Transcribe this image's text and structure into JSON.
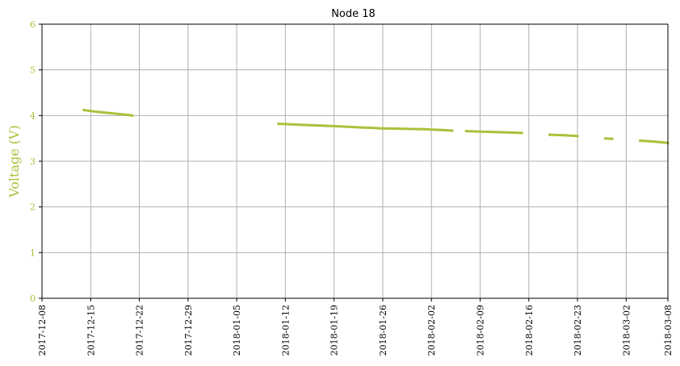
{
  "chart_data": {
    "type": "scatter",
    "title": "Node 18",
    "ylabel": "Voltage (V)",
    "xlabel": "",
    "xlim": [
      "2017-12-08",
      "2018-03-08"
    ],
    "ylim": [
      0,
      6
    ],
    "grid": true,
    "colors": {
      "series": "#a8c23a",
      "axis_text": "#a8c23a",
      "grid": "#b0b0b0"
    },
    "x_ticks": [
      "2017-12-08",
      "2017-12-15",
      "2017-12-22",
      "2017-12-29",
      "2018-01-05",
      "2018-01-12",
      "2018-01-19",
      "2018-01-26",
      "2018-02-02",
      "2018-02-09",
      "2018-02-16",
      "2018-02-23",
      "2018-03-02",
      "2018-03-08"
    ],
    "y_ticks": [
      0,
      1,
      2,
      3,
      4,
      5,
      6
    ],
    "series": [
      {
        "segments": [
          {
            "x": [
              "2017-12-14",
              "2017-12-16",
              "2017-12-18",
              "2017-12-20",
              "2017-12-21"
            ],
            "y": [
              4.12,
              4.08,
              4.05,
              4.02,
              4.0
            ]
          },
          {
            "x": [
              "2018-01-11",
              "2018-01-14",
              "2018-01-17",
              "2018-01-20",
              "2018-01-23",
              "2018-01-26",
              "2018-01-29",
              "2018-02-01",
              "2018-02-04",
              "2018-02-05"
            ],
            "y": [
              3.82,
              3.8,
              3.78,
              3.76,
              3.74,
              3.72,
              3.71,
              3.7,
              3.68,
              3.67
            ]
          },
          {
            "x": [
              "2018-02-07",
              "2018-02-09",
              "2018-02-11",
              "2018-02-13",
              "2018-02-15"
            ],
            "y": [
              3.66,
              3.65,
              3.64,
              3.63,
              3.62
            ]
          },
          {
            "x": [
              "2018-02-19",
              "2018-02-21",
              "2018-02-23"
            ],
            "y": [
              3.58,
              3.57,
              3.55
            ]
          },
          {
            "x": [
              "2018-02-27",
              "2018-02-28"
            ],
            "y": [
              3.5,
              3.49
            ]
          },
          {
            "x": [
              "2018-03-04",
              "2018-03-06",
              "2018-03-08"
            ],
            "y": [
              3.45,
              3.43,
              3.4
            ]
          }
        ]
      }
    ]
  }
}
